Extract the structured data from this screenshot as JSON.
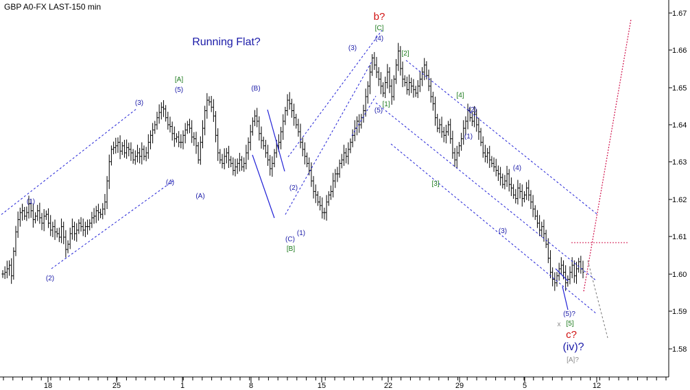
{
  "chart_data": {
    "type": "bar",
    "title": "GBP A0-FX LAST-150 min",
    "y_ticks": [
      "1.67",
      "1.66",
      "1.65",
      "1.64",
      "1.63",
      "1.62",
      "1.61",
      "1.60",
      "1.59",
      "1.58"
    ],
    "x_ticks": [
      "18",
      "25",
      "1",
      "8",
      "15",
      "22",
      "29",
      "5",
      "12"
    ],
    "ylim": [
      1.5745,
      1.6705
    ],
    "grid": false,
    "colors": {
      "bars": "#000000",
      "channel": "#1f1fd6",
      "wave_blue": "#1a1aa8",
      "wave_green": "#1c7a1c",
      "wave_red": "#d01010",
      "wave_gray": "#8a8a8a",
      "projection": "#d0104a"
    },
    "series": [
      {
        "values": [
          1.596,
          1.5965,
          1.5975,
          1.5985,
          1.5955,
          1.6025,
          1.608,
          1.6115,
          1.6135,
          1.614,
          1.6125,
          1.6135,
          1.616,
          1.614,
          1.6115,
          1.6125,
          1.614,
          1.612,
          1.6105,
          1.6125,
          1.613,
          1.6105,
          1.6085,
          1.6095,
          1.608,
          1.6075,
          1.6065,
          1.6095,
          1.6065,
          1.603,
          1.6045,
          1.6075,
          1.6095,
          1.6075,
          1.6085,
          1.6105,
          1.6095,
          1.6085,
          1.6095,
          1.6095,
          1.6105,
          1.612,
          1.6125,
          1.614,
          1.6135,
          1.613,
          1.6145,
          1.6165,
          1.6225,
          1.628,
          1.6315,
          1.632,
          1.6325,
          1.6335,
          1.631,
          1.6325,
          1.6305,
          1.632,
          1.6315,
          1.6305,
          1.6285,
          1.6295,
          1.6305,
          1.6295,
          1.6315,
          1.6295,
          1.6305,
          1.6335,
          1.6355,
          1.637,
          1.6385,
          1.6405,
          1.642,
          1.6435,
          1.643,
          1.6405,
          1.6385,
          1.638,
          1.636,
          1.6345,
          1.635,
          1.6335,
          1.6335,
          1.6355,
          1.637,
          1.6385,
          1.6375,
          1.635,
          1.6345,
          1.6325,
          1.6285,
          1.6335,
          1.6375,
          1.6425,
          1.6455,
          1.645,
          1.6435,
          1.641,
          1.6355,
          1.6305,
          1.6285,
          1.6275,
          1.6295,
          1.6305,
          1.6285,
          1.6275,
          1.6255,
          1.6265,
          1.6275,
          1.6285,
          1.6265,
          1.6275,
          1.6305,
          1.6335,
          1.6365,
          1.6395,
          1.641,
          1.6395,
          1.636,
          1.634,
          1.6325,
          1.6305,
          1.6285,
          1.626,
          1.6275,
          1.6305,
          1.6325,
          1.6335,
          1.6365,
          1.6395,
          1.6425,
          1.6455,
          1.6445,
          1.6425,
          1.6405,
          1.6385,
          1.6365,
          1.6335,
          1.6315,
          1.6295,
          1.6275,
          1.6255,
          1.6225,
          1.6195,
          1.6185,
          1.6165,
          1.6155,
          1.6135,
          1.6135,
          1.6165,
          1.6185,
          1.6195,
          1.6225,
          1.6245,
          1.6245,
          1.6275,
          1.6285,
          1.6305,
          1.6295,
          1.6315,
          1.6335,
          1.6355,
          1.6375,
          1.6395,
          1.6385,
          1.6405,
          1.6425,
          1.6465,
          1.6495,
          1.6535,
          1.6575,
          1.6555,
          1.6535,
          1.6515,
          1.6495,
          1.6475,
          1.6505,
          1.6535,
          1.6495,
          1.6465,
          1.6515,
          1.6555,
          1.6595,
          1.6545,
          1.6515,
          1.6505,
          1.6485,
          1.6505,
          1.6495,
          1.6485,
          1.6475,
          1.6495,
          1.6515,
          1.6535,
          1.6555,
          1.6525,
          1.6495,
          1.6465,
          1.6445,
          1.6405,
          1.6375,
          1.6385,
          1.6365,
          1.6355,
          1.6365,
          1.6385,
          1.6345,
          1.6305,
          1.6285,
          1.6305,
          1.6325,
          1.6345,
          1.6375,
          1.6395,
          1.6425,
          1.6405,
          1.6395,
          1.6415,
          1.6385,
          1.6365,
          1.6335,
          1.6305,
          1.6295,
          1.6305,
          1.6285,
          1.6275,
          1.6265,
          1.6255,
          1.6245,
          1.6235,
          1.6215,
          1.6225,
          1.6245,
          1.6215,
          1.6205,
          1.6185,
          1.6175,
          1.6205,
          1.6195,
          1.6175,
          1.6185,
          1.6205,
          1.6185,
          1.6165,
          1.6145,
          1.6125,
          1.6105,
          1.6085,
          1.6095,
          1.6075,
          1.6045,
          1.6005,
          1.5965,
          1.5945,
          1.5935,
          1.5955,
          1.5975,
          1.5985,
          1.5965,
          1.5935,
          1.5945,
          1.5965,
          1.5985,
          1.5955,
          1.5975,
          1.5995,
          1.5975,
          1.5965
        ]
      }
    ],
    "annotations": [
      {
        "text": "Running Flat?",
        "style": "label"
      },
      {
        "text": "(1)",
        "style": "blue"
      },
      {
        "text": "(2)",
        "style": "blue"
      },
      {
        "text": "(3)",
        "style": "blue"
      },
      {
        "text": "(4)",
        "style": "blue"
      },
      {
        "text": "(5)",
        "style": "blue"
      },
      {
        "text": "[A]",
        "style": "green"
      },
      {
        "text": "(A)",
        "style": "blue"
      },
      {
        "text": "(B)",
        "style": "blue"
      },
      {
        "text": "(C)",
        "style": "blue"
      },
      {
        "text": "[B]",
        "style": "green"
      },
      {
        "text": "(1)",
        "style": "blue"
      },
      {
        "text": "(2)",
        "style": "blue"
      },
      {
        "text": "(3)",
        "style": "blue"
      },
      {
        "text": "(4)",
        "style": "blue"
      },
      {
        "text": "(5)",
        "style": "blue"
      },
      {
        "text": "[C]",
        "style": "green"
      },
      {
        "text": "b?",
        "style": "red"
      },
      {
        "text": "[1]",
        "style": "green"
      },
      {
        "text": "[2]",
        "style": "green"
      },
      {
        "text": "[3]",
        "style": "green"
      },
      {
        "text": "[4]",
        "style": "green"
      },
      {
        "text": "(1)",
        "style": "blue"
      },
      {
        "text": "(2)",
        "style": "blue"
      },
      {
        "text": "(3)",
        "style": "blue"
      },
      {
        "text": "(4)",
        "style": "blue"
      },
      {
        "text": "(5)?",
        "style": "blue"
      },
      {
        "text": "[5]",
        "style": "green"
      },
      {
        "text": "x",
        "style": "gray"
      },
      {
        "text": "c?",
        "style": "red"
      },
      {
        "text": "(iv)?",
        "style": "bigblue"
      },
      {
        "text": "[A]?",
        "style": "gray"
      }
    ]
  }
}
